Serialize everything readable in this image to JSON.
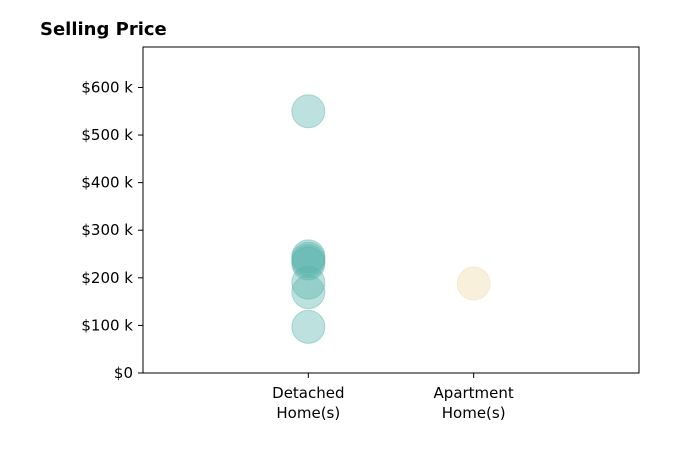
{
  "chart_data": {
    "type": "scatter",
    "title": "Selling Price",
    "xlabel": "",
    "ylabel": "",
    "categories": [
      [
        "Detached",
        "Home(s)"
      ],
      [
        "Apartment",
        "Home(s)"
      ]
    ],
    "y_ticks": [
      {
        "value": 0,
        "label": "$0"
      },
      {
        "value": 100000,
        "label": "$100 k"
      },
      {
        "value": 200000,
        "label": "$200 k"
      },
      {
        "value": 300000,
        "label": "$300 k"
      },
      {
        "value": 400000,
        "label": "$400 k"
      },
      {
        "value": 500000,
        "label": "$500 k"
      },
      {
        "value": 600000,
        "label": "$600 k"
      }
    ],
    "ylim": [
      0,
      685000
    ],
    "xlim": [
      -1,
      2
    ],
    "grid": false,
    "series": [
      {
        "category_index": 0,
        "color": "#5ab4ac",
        "values": [
          550000,
          245000,
          240000,
          235000,
          230000,
          190000,
          170000,
          97000
        ]
      },
      {
        "category_index": 1,
        "color": "#f0d9a8",
        "values": [
          188000
        ]
      }
    ]
  }
}
